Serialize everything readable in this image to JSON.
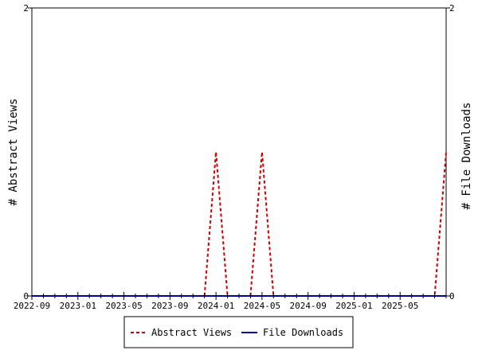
{
  "chart_data": {
    "type": "line",
    "x_tick_labels": [
      "2022-09",
      "2023-01",
      "2023-05",
      "2023-09",
      "2024-01",
      "2024-05",
      "2024-09",
      "2025-01",
      "2025-05"
    ],
    "x": [
      "2022-09",
      "2022-10",
      "2022-11",
      "2022-12",
      "2023-01",
      "2023-02",
      "2023-03",
      "2023-04",
      "2023-05",
      "2023-06",
      "2023-07",
      "2023-08",
      "2023-09",
      "2023-10",
      "2023-11",
      "2023-12",
      "2024-01",
      "2024-02",
      "2024-03",
      "2024-04",
      "2024-05",
      "2024-06",
      "2024-07",
      "2024-08",
      "2024-09",
      "2024-10",
      "2024-11",
      "2024-12",
      "2025-01",
      "2025-02",
      "2025-03",
      "2025-04",
      "2025-05",
      "2025-06",
      "2025-07",
      "2025-08",
      "2025-09"
    ],
    "series": [
      {
        "name": "Abstract Views",
        "axis": "left",
        "color": "#cc0000",
        "dash": true,
        "values": [
          0,
          0,
          0,
          0,
          0,
          0,
          0,
          0,
          0,
          0,
          0,
          0,
          0,
          0,
          0,
          0,
          1,
          0,
          0,
          0,
          1,
          0,
          0,
          0,
          0,
          0,
          0,
          0,
          0,
          0,
          0,
          0,
          0,
          0,
          0,
          0,
          1
        ]
      },
      {
        "name": "File Downloads",
        "axis": "right",
        "color": "#000099",
        "dash": false,
        "values": [
          0,
          0,
          0,
          0,
          0,
          0,
          0,
          0,
          0,
          0,
          0,
          0,
          0,
          0,
          0,
          0,
          0,
          0,
          0,
          0,
          0,
          0,
          0,
          0,
          0,
          0,
          0,
          0,
          0,
          0,
          0,
          0,
          0,
          0,
          0,
          0,
          0
        ]
      }
    ],
    "ylabel_left": "# Abstract Views",
    "ylabel_right": "# File Downloads",
    "ylim_left": [
      0,
      2
    ],
    "ylim_right": [
      0,
      2
    ],
    "y_ticks_left": [
      "0",
      "2"
    ],
    "y_ticks_right": [
      "0",
      "2"
    ],
    "grid": false,
    "legend_position": "bottom-center"
  }
}
